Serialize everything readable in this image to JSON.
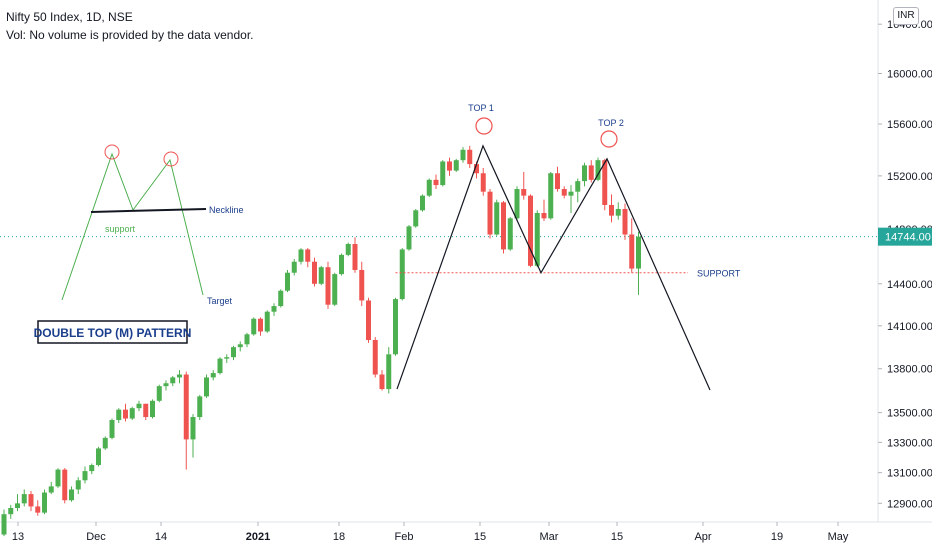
{
  "header": {
    "title": "Nifty 50 Index, 1D, NSE",
    "volume_note": "Vol: No volume is provided by the data vendor."
  },
  "currency": "INR",
  "colors": {
    "up": "#26a69a",
    "up_fill": "#4caf50",
    "down": "#ef5350",
    "pattern_line": "#131722",
    "guide": "#4caf50",
    "neckline_text": "#1a3e8c",
    "support_line": "#ef5350",
    "circle": "#ef5350",
    "last_price_bg": "#26a69a"
  },
  "chart_data": {
    "type": "candlestick",
    "title": "Nifty 50 Index, 1D, NSE",
    "y_scale": "log",
    "ylim": [
      12780,
      16600
    ],
    "y_ticks": [
      12900,
      13100,
      13300,
      13500,
      13800,
      14100,
      14400,
      14800,
      15200,
      15600,
      16000,
      16400
    ],
    "y_tick_labels": [
      "12900.00",
      "13100.00",
      "13300.00",
      "13500.00",
      "13800.00",
      "14100.00",
      "14400.00",
      "14800.00",
      "15200.00",
      "15600.00",
      "16000.00",
      "16400.00"
    ],
    "x_labels": [
      "13",
      "Dec",
      "14",
      "2021",
      "18",
      "Feb",
      "15",
      "Mar",
      "15",
      "Apr",
      "19",
      "May"
    ],
    "last_price": 14744.0,
    "last_price_label": "14744.00",
    "candles": [
      {
        "o": 12700,
        "h": 12860,
        "l": 12690,
        "c": 12830
      },
      {
        "o": 12830,
        "h": 12890,
        "l": 12800,
        "c": 12870
      },
      {
        "o": 12870,
        "h": 12960,
        "l": 12850,
        "c": 12900
      },
      {
        "o": 12900,
        "h": 12990,
        "l": 12880,
        "c": 12960
      },
      {
        "o": 12960,
        "h": 12980,
        "l": 12850,
        "c": 12880
      },
      {
        "o": 12880,
        "h": 12920,
        "l": 12820,
        "c": 12840
      },
      {
        "o": 12840,
        "h": 12990,
        "l": 12830,
        "c": 12970
      },
      {
        "o": 12970,
        "h": 13040,
        "l": 12960,
        "c": 13010
      },
      {
        "o": 13010,
        "h": 13130,
        "l": 13000,
        "c": 13120
      },
      {
        "o": 13120,
        "h": 13130,
        "l": 12900,
        "c": 12920
      },
      {
        "o": 12920,
        "h": 13010,
        "l": 12910,
        "c": 12990
      },
      {
        "o": 12990,
        "h": 13070,
        "l": 12960,
        "c": 13050
      },
      {
        "o": 13050,
        "h": 13140,
        "l": 13030,
        "c": 13110
      },
      {
        "o": 13110,
        "h": 13160,
        "l": 13090,
        "c": 13150
      },
      {
        "o": 13150,
        "h": 13270,
        "l": 13140,
        "c": 13260
      },
      {
        "o": 13260,
        "h": 13340,
        "l": 13250,
        "c": 13330
      },
      {
        "o": 13330,
        "h": 13460,
        "l": 13320,
        "c": 13450
      },
      {
        "o": 13450,
        "h": 13530,
        "l": 13430,
        "c": 13520
      },
      {
        "o": 13520,
        "h": 13560,
        "l": 13440,
        "c": 13460
      },
      {
        "o": 13460,
        "h": 13540,
        "l": 13450,
        "c": 13530
      },
      {
        "o": 13530,
        "h": 13580,
        "l": 13510,
        "c": 13560
      },
      {
        "o": 13560,
        "h": 13560,
        "l": 13450,
        "c": 13470
      },
      {
        "o": 13470,
        "h": 13590,
        "l": 13460,
        "c": 13580
      },
      {
        "o": 13580,
        "h": 13690,
        "l": 13570,
        "c": 13680
      },
      {
        "o": 13680,
        "h": 13720,
        "l": 13650,
        "c": 13700
      },
      {
        "o": 13700,
        "h": 13750,
        "l": 13680,
        "c": 13740
      },
      {
        "o": 13740,
        "h": 13790,
        "l": 13700,
        "c": 13760
      },
      {
        "o": 13760,
        "h": 13780,
        "l": 13120,
        "c": 13320
      },
      {
        "o": 13320,
        "h": 13490,
        "l": 13200,
        "c": 13470
      },
      {
        "o": 13470,
        "h": 13620,
        "l": 13450,
        "c": 13610
      },
      {
        "o": 13610,
        "h": 13760,
        "l": 13600,
        "c": 13740
      },
      {
        "o": 13740,
        "h": 13790,
        "l": 13720,
        "c": 13770
      },
      {
        "o": 13770,
        "h": 13880,
        "l": 13760,
        "c": 13870
      },
      {
        "o": 13870,
        "h": 13900,
        "l": 13840,
        "c": 13880
      },
      {
        "o": 13880,
        "h": 13960,
        "l": 13860,
        "c": 13950
      },
      {
        "o": 13950,
        "h": 13990,
        "l": 13920,
        "c": 13970
      },
      {
        "o": 13970,
        "h": 14050,
        "l": 13950,
        "c": 14040
      },
      {
        "o": 14040,
        "h": 14160,
        "l": 14030,
        "c": 14150
      },
      {
        "o": 14150,
        "h": 14160,
        "l": 14030,
        "c": 14060
      },
      {
        "o": 14060,
        "h": 14210,
        "l": 14050,
        "c": 14200
      },
      {
        "o": 14200,
        "h": 14260,
        "l": 14170,
        "c": 14240
      },
      {
        "o": 14240,
        "h": 14360,
        "l": 14230,
        "c": 14350
      },
      {
        "o": 14350,
        "h": 14500,
        "l": 14340,
        "c": 14480
      },
      {
        "o": 14480,
        "h": 14580,
        "l": 14460,
        "c": 14560
      },
      {
        "o": 14560,
        "h": 14660,
        "l": 14540,
        "c": 14650
      },
      {
        "o": 14650,
        "h": 14660,
        "l": 14520,
        "c": 14560
      },
      {
        "o": 14560,
        "h": 14590,
        "l": 14380,
        "c": 14400
      },
      {
        "o": 14400,
        "h": 14530,
        "l": 14390,
        "c": 14520
      },
      {
        "o": 14520,
        "h": 14560,
        "l": 14220,
        "c": 14250
      },
      {
        "o": 14250,
        "h": 14480,
        "l": 14240,
        "c": 14470
      },
      {
        "o": 14470,
        "h": 14620,
        "l": 14460,
        "c": 14610
      },
      {
        "o": 14610,
        "h": 14700,
        "l": 14600,
        "c": 14690
      },
      {
        "o": 14690,
        "h": 14740,
        "l": 14480,
        "c": 14500
      },
      {
        "o": 14500,
        "h": 14560,
        "l": 14240,
        "c": 14280
      },
      {
        "o": 14280,
        "h": 14300,
        "l": 13980,
        "c": 14000
      },
      {
        "o": 14000,
        "h": 14020,
        "l": 13740,
        "c": 13760
      },
      {
        "o": 13760,
        "h": 13790,
        "l": 13650,
        "c": 13660
      },
      {
        "o": 13660,
        "h": 13950,
        "l": 13630,
        "c": 13900
      },
      {
        "o": 13900,
        "h": 14300,
        "l": 13890,
        "c": 14290
      },
      {
        "o": 14290,
        "h": 14660,
        "l": 14280,
        "c": 14650
      },
      {
        "o": 14650,
        "h": 14830,
        "l": 14640,
        "c": 14820
      },
      {
        "o": 14820,
        "h": 14950,
        "l": 14810,
        "c": 14940
      },
      {
        "o": 14940,
        "h": 15060,
        "l": 14930,
        "c": 15050
      },
      {
        "o": 15050,
        "h": 15180,
        "l": 15040,
        "c": 15170
      },
      {
        "o": 15170,
        "h": 15210,
        "l": 15100,
        "c": 15130
      },
      {
        "o": 15130,
        "h": 15320,
        "l": 15120,
        "c": 15310
      },
      {
        "o": 15310,
        "h": 15340,
        "l": 15200,
        "c": 15240
      },
      {
        "o": 15240,
        "h": 15330,
        "l": 15230,
        "c": 15320
      },
      {
        "o": 15320,
        "h": 15420,
        "l": 15300,
        "c": 15400
      },
      {
        "o": 15400,
        "h": 15430,
        "l": 15260,
        "c": 15290
      },
      {
        "o": 15290,
        "h": 15310,
        "l": 15180,
        "c": 15220
      },
      {
        "o": 15220,
        "h": 15260,
        "l": 15050,
        "c": 15080
      },
      {
        "o": 15080,
        "h": 15100,
        "l": 14730,
        "c": 14760
      },
      {
        "o": 14760,
        "h": 15020,
        "l": 14750,
        "c": 15000
      },
      {
        "o": 15000,
        "h": 15010,
        "l": 14620,
        "c": 14650
      },
      {
        "o": 14650,
        "h": 14890,
        "l": 14640,
        "c": 14880
      },
      {
        "o": 14880,
        "h": 15120,
        "l": 14860,
        "c": 15100
      },
      {
        "o": 15100,
        "h": 15230,
        "l": 15020,
        "c": 15050
      },
      {
        "o": 15050,
        "h": 15060,
        "l": 14520,
        "c": 14530
      },
      {
        "o": 14530,
        "h": 14940,
        "l": 14520,
        "c": 14920
      },
      {
        "o": 14920,
        "h": 15020,
        "l": 14860,
        "c": 14880
      },
      {
        "o": 14880,
        "h": 15230,
        "l": 14870,
        "c": 15220
      },
      {
        "o": 15220,
        "h": 15270,
        "l": 15080,
        "c": 15100
      },
      {
        "o": 15100,
        "h": 15120,
        "l": 15030,
        "c": 15050
      },
      {
        "o": 15050,
        "h": 15130,
        "l": 14920,
        "c": 15080
      },
      {
        "o": 15080,
        "h": 15180,
        "l": 15000,
        "c": 15160
      },
      {
        "o": 15160,
        "h": 15300,
        "l": 15120,
        "c": 15280
      },
      {
        "o": 15280,
        "h": 15320,
        "l": 15150,
        "c": 15170
      },
      {
        "o": 15170,
        "h": 15340,
        "l": 15160,
        "c": 15320
      },
      {
        "o": 15320,
        "h": 15330,
        "l": 14940,
        "c": 14980
      },
      {
        "o": 14980,
        "h": 15060,
        "l": 14850,
        "c": 14900
      },
      {
        "o": 14900,
        "h": 15000,
        "l": 14870,
        "c": 14950
      },
      {
        "o": 14950,
        "h": 14990,
        "l": 14720,
        "c": 14760
      },
      {
        "o": 14760,
        "h": 14880,
        "l": 14480,
        "c": 14510
      },
      {
        "o": 14510,
        "h": 14780,
        "l": 14320,
        "c": 14744
      }
    ]
  },
  "annotations": {
    "pattern_box": "DOUBLE TOP (M) PATTERN",
    "top1": "TOP 1",
    "top2": "TOP 2",
    "support": "SUPPORT",
    "neckline": "Neckline",
    "support_small": "support",
    "target": "Target"
  }
}
